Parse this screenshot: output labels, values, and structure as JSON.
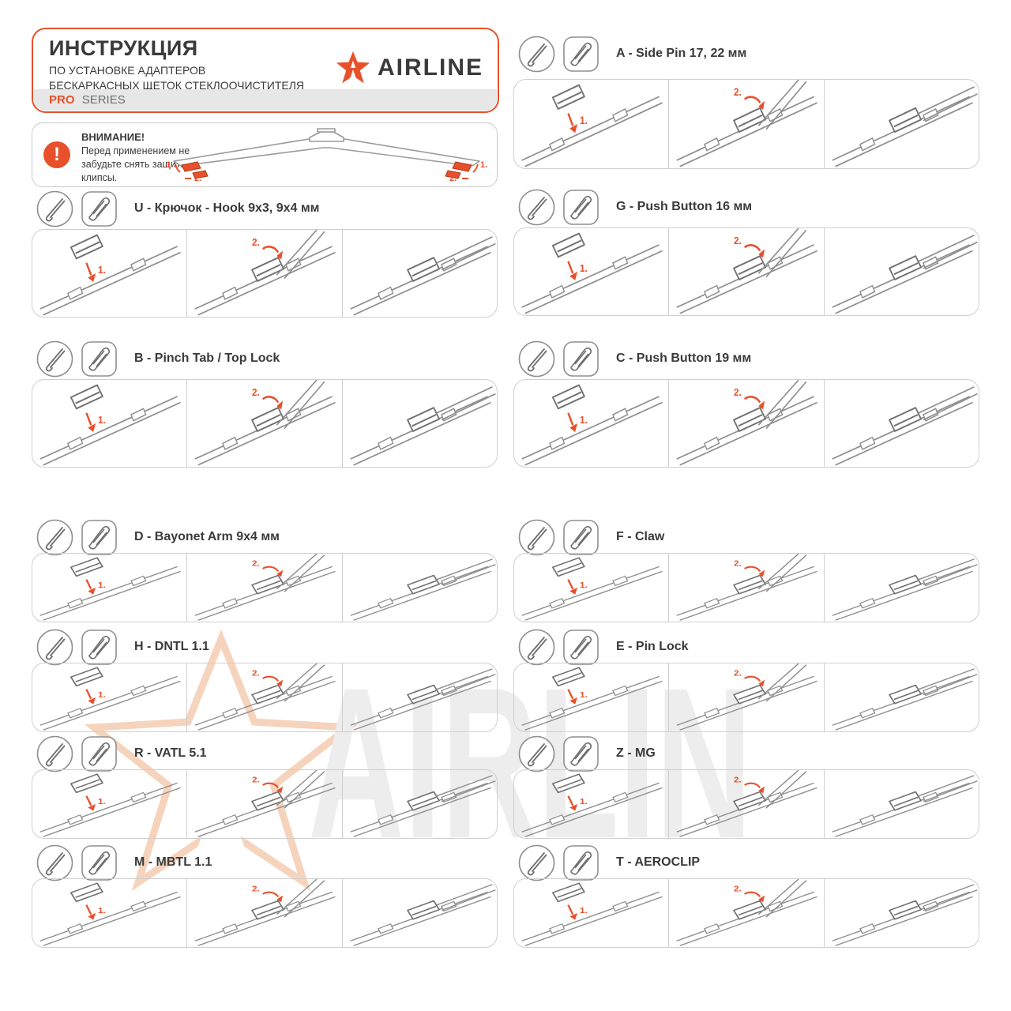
{
  "header": {
    "title": "ИНСТРУКЦИЯ",
    "subtitle1": "ПО УСТАНОВКЕ АДАПТЕРОВ",
    "subtitle2": "БЕСКАРКАСНЫХ ЩЕТОК СТЕКЛООЧИСТИТЕЛЯ",
    "series_highlight": "PRO",
    "series_rest": "SERIES",
    "brand": "AIRLINE",
    "accent_color": "#E8502B",
    "text_color": "#3A3A3A"
  },
  "warning": {
    "title": "ВНИМАНИЕ!",
    "text": "Перед применением не забудьте снять защитные клипсы.",
    "clip_labels": [
      "1.",
      "2.",
      "2.",
      "1."
    ]
  },
  "watermark": {
    "brand": "AIRLINE"
  },
  "icons": {
    "warning": "exclamation-circle",
    "arm_type": "wiper-arm-line",
    "adapter": "adapter-block",
    "logo": "airline-star"
  },
  "sections": [
    {
      "id": "U",
      "title": "U - Крючок - Hook 9x3, 9x4 мм",
      "step_labels": [
        "1.",
        "2.",
        ""
      ]
    },
    {
      "id": "B",
      "title": "B - Pinch Tab / Top Lock",
      "step_labels": [
        "1.",
        "2.",
        ""
      ]
    },
    {
      "id": "D",
      "title": "D - Bayonet Arm 9x4 мм",
      "step_labels": [
        "1.",
        "2.",
        ""
      ]
    },
    {
      "id": "H",
      "title": "H - DNTL 1.1",
      "step_labels": [
        "1.",
        "2.",
        ""
      ]
    },
    {
      "id": "R",
      "title": "R - VATL 5.1",
      "step_labels": [
        "1.",
        "2.",
        ""
      ]
    },
    {
      "id": "M",
      "title": "M - MBTL 1.1",
      "step_labels": [
        "1.",
        "2.",
        ""
      ]
    },
    {
      "id": "A",
      "title": "A - Side Pin 17, 22 мм",
      "step_labels": [
        "1.",
        "2.",
        ""
      ]
    },
    {
      "id": "G",
      "title": "G - Push Button 16 мм",
      "step_labels": [
        "1.",
        "2.",
        ""
      ]
    },
    {
      "id": "C",
      "title": "C - Push Button 19 мм",
      "step_labels": [
        "1.",
        "2.",
        ""
      ]
    },
    {
      "id": "F",
      "title": "F - Claw",
      "step_labels": [
        "1.",
        "2.",
        ""
      ]
    },
    {
      "id": "E",
      "title": "E - Pin Lock",
      "step_labels": [
        "1.",
        "2.",
        ""
      ]
    },
    {
      "id": "Z",
      "title": "Z - MG",
      "step_labels": [
        "1.",
        "2.",
        ""
      ]
    },
    {
      "id": "T",
      "title": "T - AEROCLIP",
      "step_labels": [
        "1.",
        "2.",
        ""
      ]
    }
  ]
}
